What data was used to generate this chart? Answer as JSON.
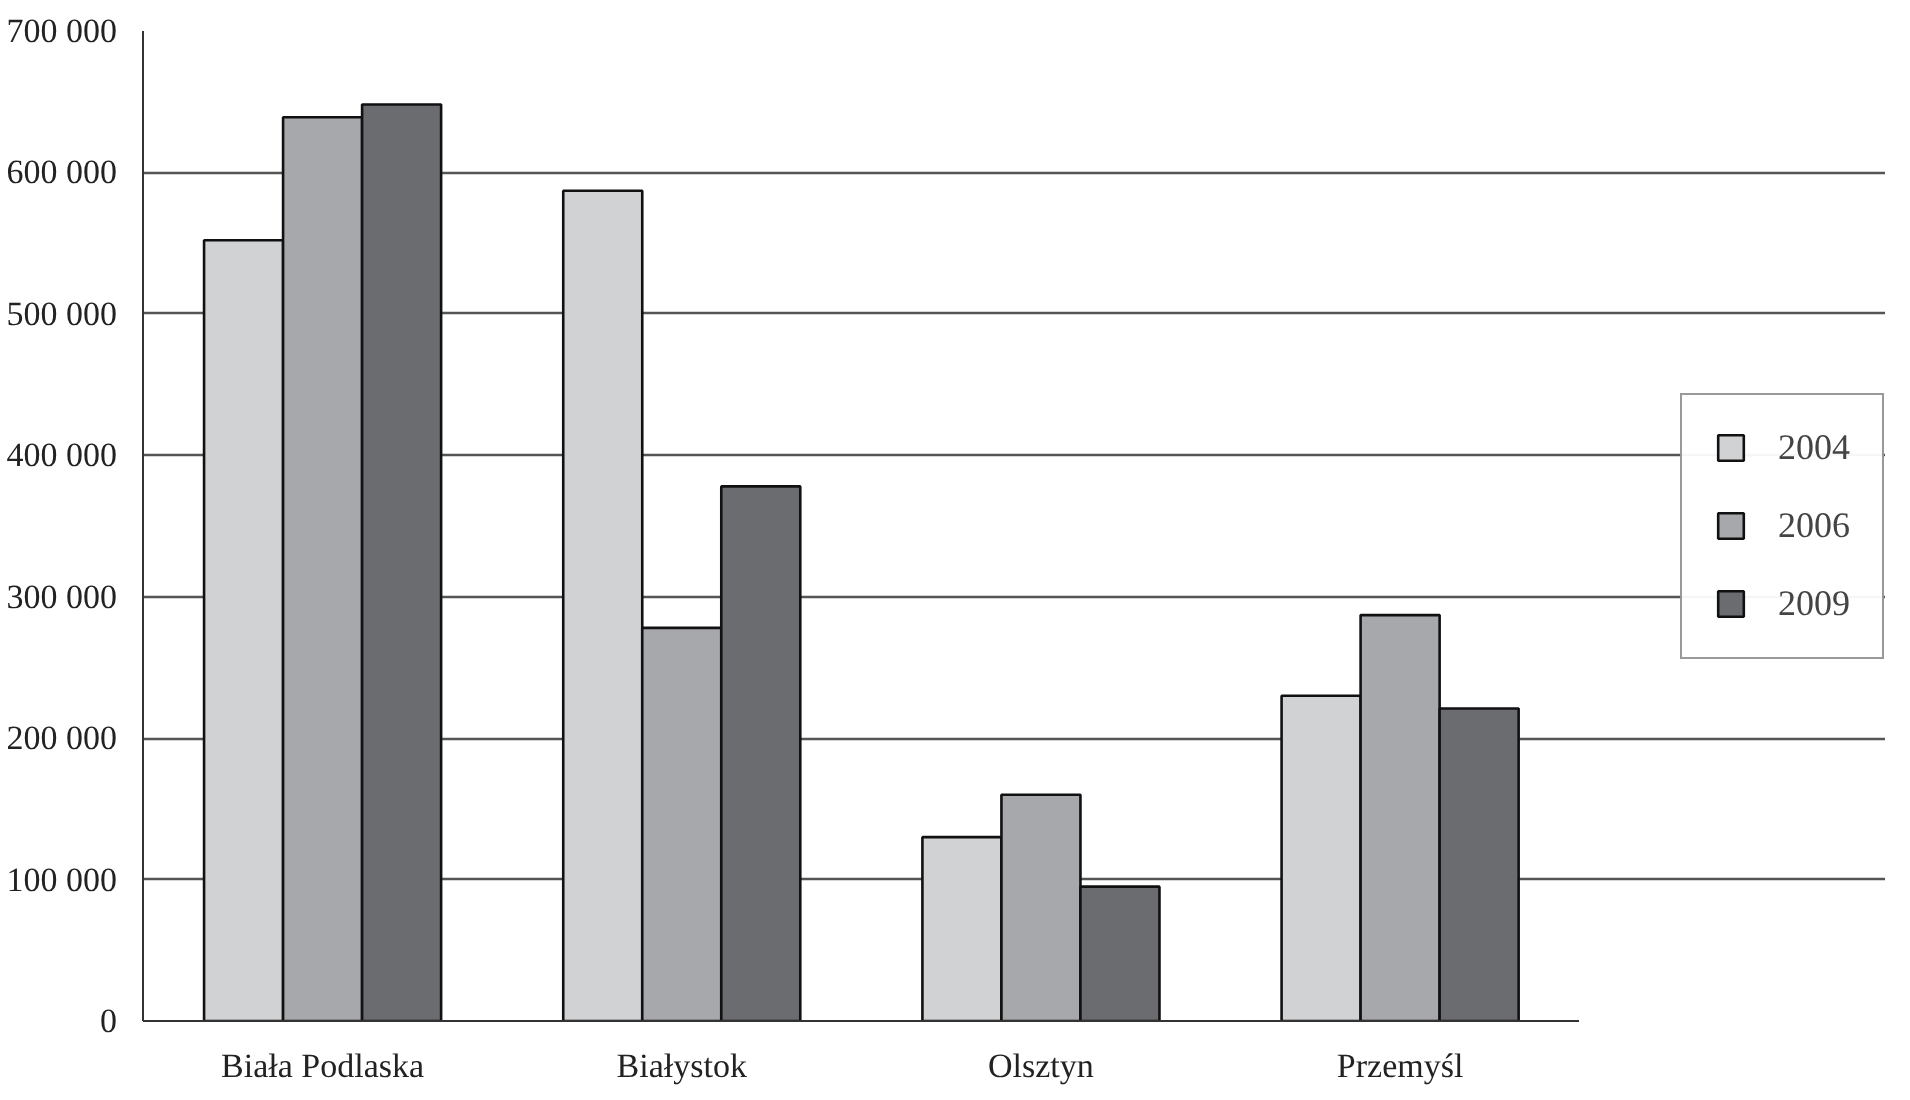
{
  "chart_data": {
    "type": "bar",
    "categories": [
      "Biała Podlaska",
      "Białystok",
      "Olsztyn",
      "Przemyśl"
    ],
    "series": [
      {
        "name": "2004",
        "color": "#d1d2d4",
        "values": [
          552000,
          587000,
          130000,
          230000
        ]
      },
      {
        "name": "2006",
        "color": "#a7a8ab",
        "values": [
          639000,
          278000,
          160000,
          287000
        ]
      },
      {
        "name": "2009",
        "color": "#6b6c70",
        "values": [
          648000,
          378000,
          95000,
          221000
        ]
      }
    ],
    "ylim": [
      0,
      700000
    ],
    "yticks": [
      {
        "value": 0,
        "label": "0"
      },
      {
        "value": 100000,
        "label": "100 000"
      },
      {
        "value": 200000,
        "label": "200 000"
      },
      {
        "value": 300000,
        "label": "300 000"
      },
      {
        "value": 400000,
        "label": "400 000"
      },
      {
        "value": 500000,
        "label": "500 000"
      },
      {
        "value": 600000,
        "label": "600 000"
      },
      {
        "value": 700000,
        "label": "700 000"
      }
    ],
    "grid": "y",
    "legend": "right"
  }
}
